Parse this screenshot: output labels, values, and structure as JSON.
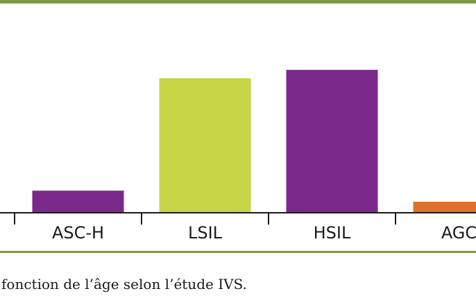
{
  "chart_data": {
    "type": "bar",
    "categories": [
      "ASC-H",
      "LSIL",
      "HSIL",
      "AGC"
    ],
    "values": [
      3.4,
      20.7,
      22.0,
      1.7
    ],
    "colors": [
      "#7b2a8b",
      "#c5d545",
      "#7b2a8b",
      "#e0712d"
    ],
    "ylim": [
      0,
      32
    ],
    "grid": false,
    "title": "",
    "xlabel": "",
    "ylabel": ""
  },
  "caption": "fonction de l’âge selon l’étude IVS.",
  "colors": {
    "axis": "#1a1a1a",
    "rule": "#7c9a45"
  }
}
